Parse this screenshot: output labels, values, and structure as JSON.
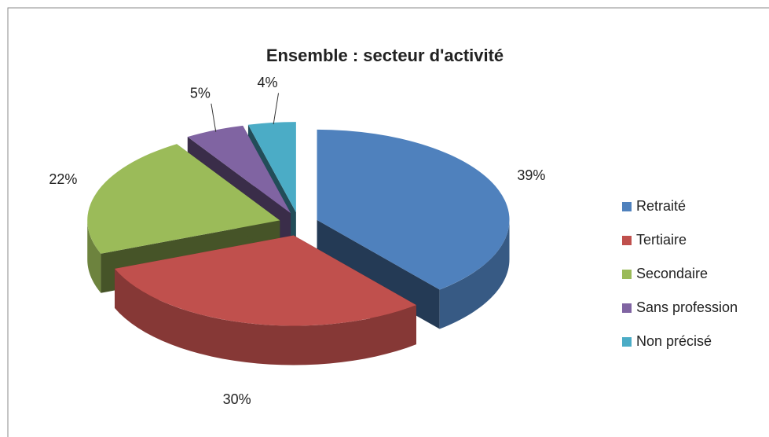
{
  "chart_data": {
    "type": "pie3d",
    "title": "Ensemble : secteur d'activité",
    "categories": [
      "Retraité",
      "Tertiaire",
      "Secondaire",
      "Sans profession",
      "Non précisé"
    ],
    "values": [
      39,
      30,
      22,
      5,
      4
    ],
    "value_labels": [
      "39%",
      "30%",
      "22%",
      "5%",
      "4%"
    ],
    "colors": [
      "#4f81bd",
      "#c0504d",
      "#9bbb59",
      "#8064a2",
      "#4bacc6"
    ],
    "legend": "right"
  }
}
